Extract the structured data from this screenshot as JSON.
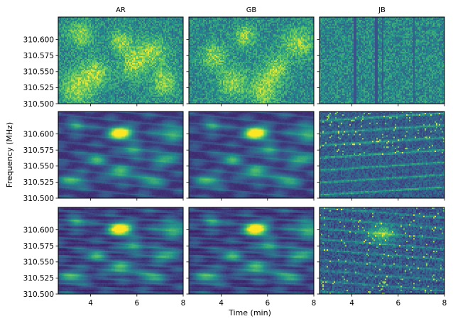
{
  "chart_data": {
    "type": "heatmap",
    "colormap": "viridis",
    "colormap_stops": [
      "#440154",
      "#3b528b",
      "#21918c",
      "#5ec962",
      "#fde725"
    ],
    "ylabel": "Frequency (MHz)",
    "xlabel": "Time (min)",
    "column_titles": [
      "AR",
      "GB",
      "JB"
    ],
    "rows": 3,
    "xlim": [
      2.6,
      8.0
    ],
    "ylim": [
      310.5,
      310.635
    ],
    "x_ticks": [
      4,
      6,
      8
    ],
    "x_tick_labels": [
      "4",
      "6",
      "8"
    ],
    "y_ticks": [
      310.5,
      310.525,
      310.55,
      310.575,
      310.6
    ],
    "y_tick_labels": [
      "310.500",
      "310.525",
      "310.550",
      "310.575",
      "310.600"
    ],
    "panels": [
      {
        "row": 0,
        "column": "AR",
        "description": "noise-dominated dynamic spectrum"
      },
      {
        "row": 0,
        "column": "GB",
        "description": "noise-dominated dynamic spectrum"
      },
      {
        "row": 0,
        "column": "JB",
        "description": "noise-dominated dynamic spectrum with vertical artifact stripes"
      },
      {
        "row": 1,
        "column": "AR",
        "description": "scintillation pattern",
        "bright_spot": {
          "x": 5.4,
          "y": 310.588
        }
      },
      {
        "row": 1,
        "column": "GB",
        "description": "scintillation pattern",
        "bright_spot": {
          "x": 5.2,
          "y": 310.588
        }
      },
      {
        "row": 1,
        "column": "JB",
        "description": "sloped streak pattern"
      },
      {
        "row": 2,
        "column": "AR",
        "description": "scintillation pattern",
        "bright_spot": {
          "x": 5.4,
          "y": 310.59
        }
      },
      {
        "row": 2,
        "column": "GB",
        "description": "scintillation pattern",
        "bright_spot": {
          "x": 5.2,
          "y": 310.59
        }
      },
      {
        "row": 2,
        "column": "JB",
        "description": "fainter scintillation pattern",
        "bright_spot": {
          "x": 5.3,
          "y": 310.585
        }
      }
    ]
  }
}
